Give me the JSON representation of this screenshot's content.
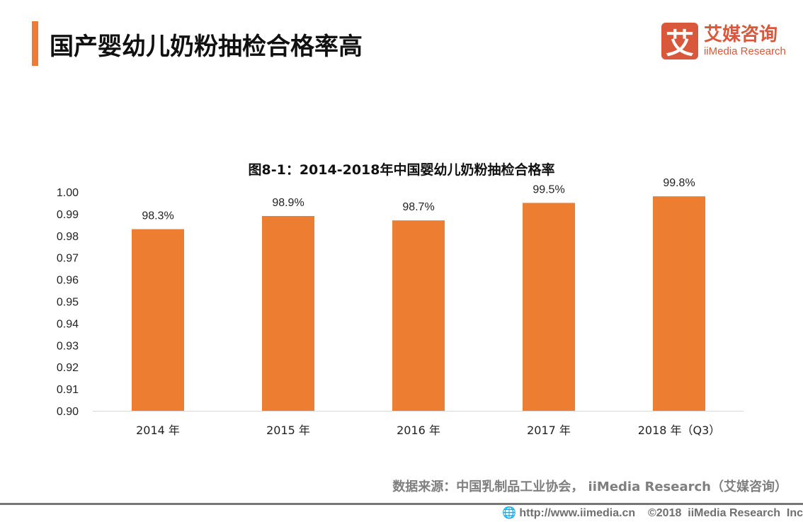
{
  "header": {
    "title": "国产婴幼儿奶粉抽检合格率高"
  },
  "logo": {
    "mark": "艾",
    "cn": "艾媒咨询",
    "en": "iiMedia Research"
  },
  "chart_data": {
    "type": "bar",
    "title": "图8-1：2014-2018年中国婴幼儿奶粉抽检合格率",
    "categories": [
      "2014 年",
      "2015 年",
      "2016 年",
      "2017 年",
      "2018 年（Q3）"
    ],
    "values": [
      0.983,
      0.989,
      0.987,
      0.995,
      0.998
    ],
    "data_labels": [
      "98.3%",
      "98.9%",
      "98.7%",
      "99.5%",
      "99.8%"
    ],
    "ylim": [
      0.9,
      1.0
    ],
    "yticks": [
      "0.90",
      "0.91",
      "0.92",
      "0.93",
      "0.94",
      "0.95",
      "0.96",
      "0.97",
      "0.98",
      "0.99",
      "1.00"
    ],
    "grid": false,
    "bar_color": "#ed7d31"
  },
  "footer": {
    "source": "数据来源：中国乳制品工业协会， iiMedia Research（艾媒咨询）",
    "url": "http://www.iimedia.cn",
    "copyright": "©2018  iiMedia Research  Inc"
  }
}
